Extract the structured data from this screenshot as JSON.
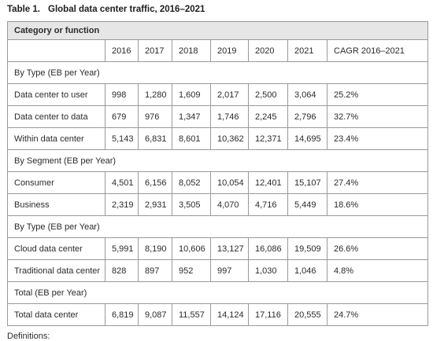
{
  "caption": {
    "number": "Table 1.",
    "title": "Global data center traffic, 2016–2021"
  },
  "header": {
    "label": "Category or function"
  },
  "columns": [
    "2016",
    "2017",
    "2018",
    "2019",
    "2020",
    "2021",
    "CAGR 2016–2021"
  ],
  "sections": [
    {
      "label": "By Type (EB per Year)",
      "rows": [
        {
          "name": "Data center to user",
          "values": [
            "998",
            "1,280",
            "1,609",
            "2,017",
            "2,500",
            "3,064",
            "25.2%"
          ]
        },
        {
          "name": "Data center to data",
          "values": [
            "679",
            "976",
            "1,347",
            "1,746",
            "2,245",
            "2,796",
            "32.7%"
          ]
        },
        {
          "name": "Within data center",
          "values": [
            "5,143",
            "6,831",
            "8,601",
            "10,362",
            "12,371",
            "14,695",
            "23.4%"
          ]
        }
      ]
    },
    {
      "label": "By Segment (EB per Year)",
      "rows": [
        {
          "name": "Consumer",
          "values": [
            "4,501",
            "6,156",
            "8,052",
            "10,054",
            "12,401",
            "15,107",
            "27.4%"
          ]
        },
        {
          "name": "Business",
          "values": [
            "2,319",
            "2,931",
            "3,505",
            "4,070",
            "4,716",
            "5,449",
            "18.6%"
          ]
        }
      ]
    },
    {
      "label": "By Type (EB per Year)",
      "rows": [
        {
          "name": "Cloud data center",
          "values": [
            "5,991",
            "8,190",
            "10,606",
            "13,127",
            "16,086",
            "19,509",
            "26.6%"
          ]
        },
        {
          "name": "Traditional data center",
          "values": [
            "828",
            "897",
            "952",
            "997",
            "1,030",
            "1,046",
            "4.8%"
          ]
        }
      ]
    },
    {
      "label": "Total (EB per Year)",
      "rows": [
        {
          "name": "Total data center",
          "values": [
            "6,819",
            "9,087",
            "11,557",
            "14,124",
            "17,116",
            "20,555",
            "24.7%"
          ]
        }
      ]
    }
  ],
  "footer": {
    "text": "Definitions:"
  }
}
